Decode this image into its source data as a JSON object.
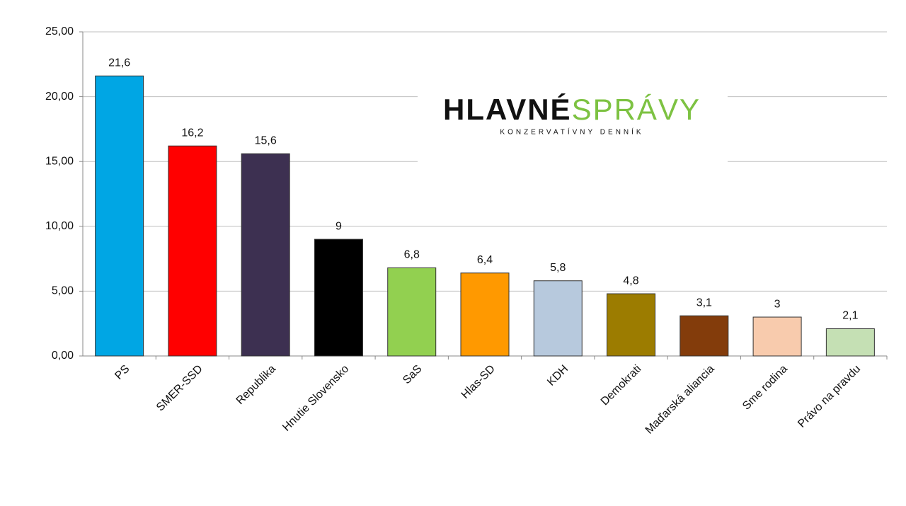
{
  "chart_data": {
    "type": "bar",
    "categories": [
      "PS",
      "SMER-SSD",
      "Republika",
      "Hnutie Slovensko",
      "SaS",
      "Hlas-SD",
      "KDH",
      "Demokrati",
      "Maďarská aliancia",
      "Sme rodina",
      "Právo na pravdu"
    ],
    "values": [
      21.6,
      16.2,
      15.6,
      9,
      6.8,
      6.4,
      5.8,
      4.8,
      3.1,
      3,
      2.1
    ],
    "value_labels": [
      "21,6",
      "16,2",
      "15,6",
      "9",
      "6,8",
      "6,4",
      "5,8",
      "4,8",
      "3,1",
      "3",
      "2,1"
    ],
    "colors": [
      "#00a6e4",
      "#ff0000",
      "#3d3051",
      "#000000",
      "#92d050",
      "#ff9900",
      "#b7c9dd",
      "#9c7c00",
      "#833c0b",
      "#f8cbad",
      "#c5e0b4"
    ],
    "ylim": [
      0,
      25
    ],
    "yticks": [
      {
        "value": 0,
        "label": "0,00"
      },
      {
        "value": 5,
        "label": "5,00"
      },
      {
        "value": 10,
        "label": "10,00"
      },
      {
        "value": 15,
        "label": "15,00"
      },
      {
        "value": 20,
        "label": "20,00"
      },
      {
        "value": 25,
        "label": "25,00"
      }
    ],
    "grid": true
  },
  "logo": {
    "name_dark": "HLAVNÉ",
    "name_green": "SPRÁVY",
    "tagline": "KONZERVATÍVNY DENNÍK"
  }
}
